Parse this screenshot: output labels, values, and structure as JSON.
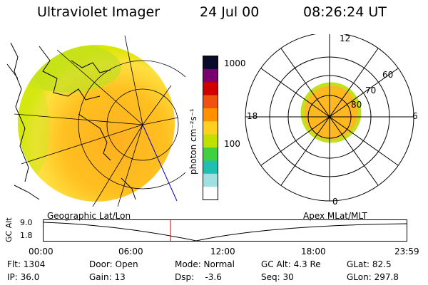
{
  "header": {
    "title": "Ultraviolet Imager",
    "date": "24 Jul 00",
    "time": "08:26:24 UT"
  },
  "colorbar": {
    "label": "photon cm⁻²s⁻¹",
    "labels": [
      "1000",
      "100"
    ],
    "colors": [
      "#0a0a2a",
      "#7a0070",
      "#d00000",
      "#f05010",
      "#ff9000",
      "#ffd020",
      "#c0e000",
      "#40d040",
      "#20c0b0",
      "#a0e0e0",
      "#ffffff"
    ]
  },
  "polar": {
    "labels": [
      "12",
      "6",
      "0",
      "18",
      "60",
      "70",
      "80"
    ]
  },
  "timeline": {
    "left_label": "Geographic Lat/Lon",
    "right_label": "Apex MLat/MLT",
    "axis_label": "GC Alt",
    "y_labels": [
      "9.0",
      "1.8"
    ],
    "x_ticks": [
      "00:00",
      "06:00",
      "12:00",
      "18:00",
      "23:59"
    ],
    "marker_time": "08:26:24"
  },
  "info": {
    "flt": "Flt: 1304",
    "ip": "IP: 36.0",
    "door": "Door: Open",
    "gain": "Gain: 13",
    "mode": "Mode: Normal",
    "dsp": "Dsp:    -3.6",
    "gcalt": "GC Alt: 4.3 Re",
    "seq": "Seq: 30",
    "glat": "GLat: 82.5",
    "glon": "GLon: 297.8"
  }
}
